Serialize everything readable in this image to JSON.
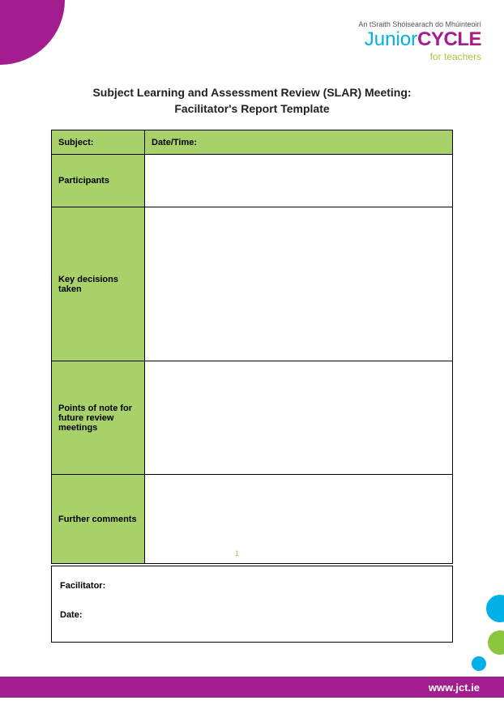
{
  "header": {
    "tagline": "An tSraith Shóisearach do Mhúinteoirí",
    "logo_part1": "Junior",
    "logo_part2": "CYCLE",
    "subtitle": "for teachers"
  },
  "title_line1": "Subject Learning and Assessment Review (SLAR) Meeting:",
  "title_line2": "Facilitator's Report Template",
  "form": {
    "subject_label": "Subject:",
    "datetime_label": "Date/Time:",
    "participants_label": "Participants",
    "decisions_label": "Key decisions taken",
    "points_label": "Points of note for future review meetings",
    "comments_label": "Further comments"
  },
  "bottom": {
    "facilitator_label": "Facilitator:",
    "date_label": "Date:"
  },
  "page_number": "1",
  "footer_url": "www.jct.ie",
  "colors": {
    "purple": "#a41d8e",
    "green_cell": "#a8d16a",
    "logo_blue": "#00b0e6",
    "logo_green": "#a8c93b",
    "dot_green": "#8cc63f"
  }
}
